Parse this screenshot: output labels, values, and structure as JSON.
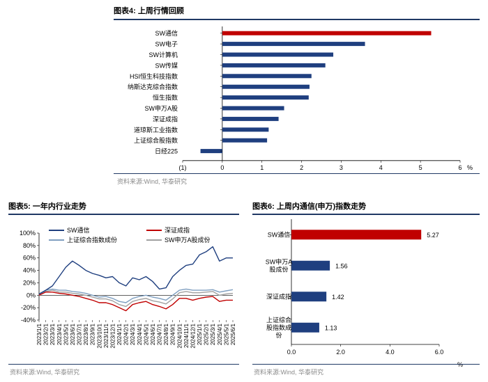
{
  "fig4": {
    "title": "图表4:  上周行情回顾",
    "source": "资料来源:Wind, 华泰研究",
    "chart_data": {
      "type": "bar",
      "orientation": "horizontal",
      "categories": [
        "SW通信",
        "SW电子",
        "SW计算机",
        "SW传媒",
        "HSI恒生科技指数",
        "纳斯达克综合指数",
        "恒生指数",
        "SW申万A股",
        "深证成指",
        "道琼斯工业指数",
        "上证综合股指数",
        "日经225"
      ],
      "values": [
        5.27,
        3.6,
        2.8,
        2.6,
        2.25,
        2.2,
        2.18,
        1.56,
        1.42,
        1.17,
        1.13,
        -0.55
      ],
      "xlim": [
        -1,
        6
      ],
      "xticks": [
        "(1)",
        "0",
        "1",
        "2",
        "3",
        "4",
        "5",
        "6"
      ],
      "xunit": "%",
      "highlight_color": "#c00000",
      "bar_color": "#1f3f7f",
      "grid": false
    }
  },
  "fig5": {
    "title": "图表5:  一年内行业走势",
    "source": "资料来源:Wind, 华泰研究",
    "chart_data": {
      "type": "line",
      "ylim": [
        -40,
        100
      ],
      "yticks": [
        "100%",
        "80%",
        "60%",
        "40%",
        "20%",
        "0%",
        "-20%",
        "-40%"
      ],
      "x_labels": [
        "2023/1/1",
        "2023/2/1",
        "2023/3/1",
        "2023/4/1",
        "2023/5/1",
        "2023/6/1",
        "2023/7/1",
        "2023/8/1",
        "2023/9/1",
        "2023/10/1",
        "2023/11/1",
        "2023/12/1",
        "2024/1/1",
        "2024/2/1",
        "2024/3/1",
        "2024/4/1",
        "2024/5/1",
        "2024/6/1",
        "2024/7/1",
        "2024/8/1",
        "2024/9/1",
        "2024/10/1",
        "2024/11/1",
        "2024/12/1",
        "2025/1/1",
        "2025/2/1",
        "2025/3/1",
        "2025/4/1",
        "2025/5/1",
        "2025/6/1"
      ],
      "legend_position": "top",
      "series": [
        {
          "name": "SW通信",
          "color": "#1f3f7f",
          "values": [
            2,
            8,
            15,
            30,
            45,
            55,
            48,
            40,
            35,
            32,
            28,
            30,
            20,
            15,
            28,
            25,
            30,
            22,
            10,
            12,
            30,
            40,
            48,
            50,
            65,
            70,
            78,
            55,
            60,
            60
          ]
        },
        {
          "name": "深证成指",
          "color": "#c00000",
          "values": [
            0,
            5,
            5,
            3,
            2,
            0,
            -2,
            -5,
            -8,
            -12,
            -12,
            -15,
            -20,
            -25,
            -15,
            -12,
            -10,
            -15,
            -18,
            -22,
            -15,
            -5,
            -5,
            -8,
            -5,
            -3,
            -2,
            -10,
            -8,
            -8
          ]
        },
        {
          "name": "上证综合指数成份",
          "color": "#7f9fc0",
          "values": [
            0,
            8,
            10,
            8,
            8,
            6,
            5,
            3,
            0,
            -3,
            -2,
            -5,
            -10,
            -12,
            -5,
            -2,
            0,
            -3,
            -5,
            -8,
            0,
            8,
            10,
            8,
            8,
            8,
            9,
            5,
            7,
            9
          ]
        },
        {
          "name": "SW申万A股成份",
          "color": "#a0a0a0",
          "values": [
            0,
            6,
            8,
            5,
            5,
            3,
            2,
            0,
            -3,
            -6,
            -6,
            -9,
            -15,
            -18,
            -10,
            -7,
            -5,
            -9,
            -11,
            -14,
            -6,
            4,
            6,
            4,
            4,
            5,
            6,
            0,
            2,
            3
          ]
        }
      ]
    }
  },
  "fig6": {
    "title": "图表6:  上周内通信(申万)指数走势",
    "source": "资料来源:Wind, 华泰研究",
    "chart_data": {
      "type": "bar",
      "orientation": "horizontal",
      "categories": [
        [
          "SW通信"
        ],
        [
          "SW申万A",
          "股成份"
        ],
        [
          "深证成指"
        ],
        [
          "上证综合",
          "股指数成",
          "份"
        ]
      ],
      "values": [
        5.27,
        1.56,
        1.42,
        1.13
      ],
      "value_labels": [
        "5.27",
        "1.56",
        "1.42",
        "1.13"
      ],
      "xlim": [
        0,
        6
      ],
      "xticks": [
        "0.0",
        "2.0",
        "4.0",
        "6.0"
      ],
      "xunit": "%",
      "colors": [
        "#c00000",
        "#1f3f7f",
        "#1f3f7f",
        "#1f3f7f"
      ],
      "grid": false
    }
  }
}
